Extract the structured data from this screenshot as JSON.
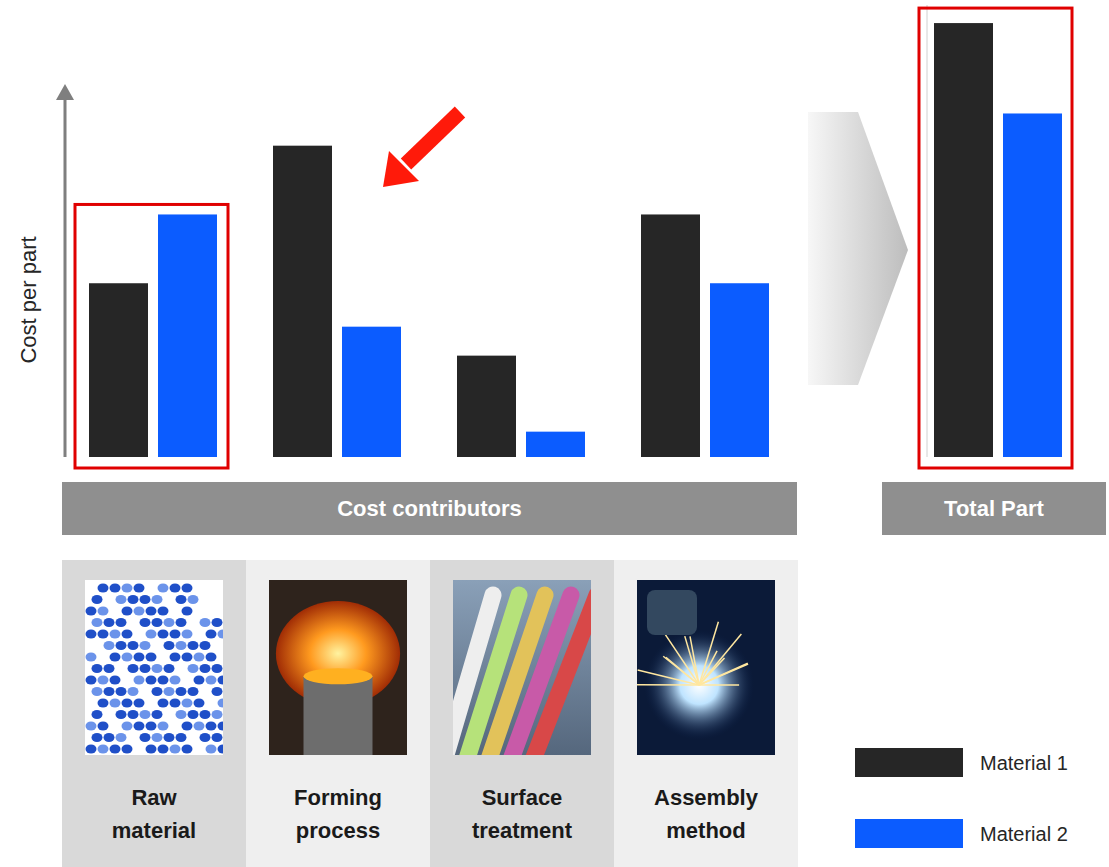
{
  "chart_data": [
    {
      "type": "bar",
      "y_label": "Cost per part",
      "x_label": "Cost contributors",
      "categories": [
        "Raw material",
        "Forming process",
        "Surface treatment",
        "Assembly method"
      ],
      "series": [
        {
          "name": "Material 1",
          "color": "#262626",
          "values": [
            48,
            86,
            28,
            67
          ]
        },
        {
          "name": "Material 2",
          "color": "#0b5cff",
          "values": [
            67,
            36,
            7,
            48
          ]
        }
      ],
      "ylim": [
        0,
        100
      ],
      "tick_labels": false,
      "legend": "bottom-right"
    },
    {
      "type": "bar",
      "x_label": "Total Part",
      "categories": [
        null
      ],
      "series": [
        {
          "color": "#262626",
          "values": [
            120
          ]
        },
        {
          "color": "#0b5cff",
          "values": [
            95
          ]
        }
      ],
      "ylim": [
        0,
        125
      ],
      "tick_labels": false
    }
  ]
}
